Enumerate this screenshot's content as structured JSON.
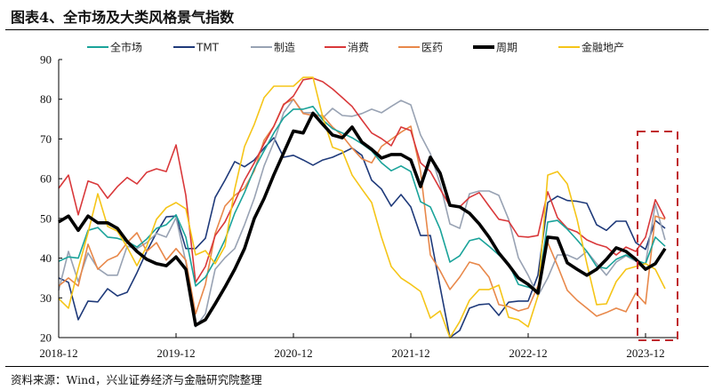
{
  "title": "图表4、全市场及大类风格景气指数",
  "source": "资料来源：Wind，兴业证券经济与金融研究院整理",
  "chart_data": {
    "type": "line",
    "title": "图表4、全市场及大类风格景气指数",
    "xlabel": "",
    "ylabel": "",
    "x_start": "2018-12",
    "x_end": "2024-02",
    "x_frequency": "monthly",
    "xticks": [
      "2018-12",
      "2019-12",
      "2020-12",
      "2021-12",
      "2022-12",
      "2023-12"
    ],
    "ylim": [
      20,
      90
    ],
    "yticks": [
      20,
      30,
      40,
      50,
      60,
      70,
      80,
      90
    ],
    "grid": false,
    "legend_position": "top",
    "highlight_box": {
      "from": "2023-11",
      "to": "2024-02",
      "color": "#C0282D",
      "style": "dashed"
    },
    "series": [
      {
        "name": "全市场",
        "color": "#1AA39A",
        "width": 1.6,
        "values": [
          39.2,
          40.3,
          40,
          47,
          47.7,
          45.3,
          45,
          44.2,
          42.8,
          44.8,
          47.5,
          48.4,
          50.9,
          45.3,
          33,
          35.2,
          39.5,
          44.6,
          51.3,
          56.5,
          62.5,
          67,
          71.5,
          75.3,
          77.5,
          77.5,
          78.2,
          74.8,
          72.6,
          71.5,
          70.3,
          68.8,
          67,
          64,
          62,
          63.2,
          61.8,
          54.2,
          52.9,
          47.3,
          39,
          40.6,
          44.4,
          45,
          43,
          40.8,
          38.6,
          33.4,
          32.7,
          31.9,
          49.1,
          49.5,
          47.3,
          44.6,
          41.7,
          37.9,
          37.4,
          39.7,
          40.8,
          39.5,
          38.6,
          45.3,
          43
        ]
      },
      {
        "name": "TMT",
        "color": "#1F3A7A",
        "width": 1.6,
        "values": [
          35,
          33.9,
          24.5,
          29.2,
          29,
          32.3,
          30.5,
          31.4,
          36.3,
          41.7,
          46.4,
          50.4,
          50.6,
          42.4,
          42.4,
          45,
          55.3,
          59.6,
          64.3,
          63,
          64.7,
          67.7,
          70.3,
          65.4,
          65.9,
          64.7,
          63.4,
          64.7,
          65.4,
          66.5,
          67.7,
          65.9,
          59.6,
          57.4,
          53.1,
          56,
          52.9,
          45.7,
          45.7,
          32.7,
          20,
          21.8,
          27.4,
          28.3,
          28.5,
          25.6,
          28.9,
          29.2,
          29.2,
          35.7,
          54,
          55.6,
          54.5,
          54.3,
          53.8,
          48.4,
          47,
          49.3,
          49.3,
          43.9,
          42.2,
          49.5,
          47.5
        ]
      },
      {
        "name": "制造",
        "color": "#98A2B3",
        "width": 1.6,
        "values": [
          31.9,
          41.7,
          34.1,
          41.3,
          37.4,
          35.7,
          35.7,
          43,
          42.4,
          43.9,
          46.2,
          45.3,
          50.2,
          39,
          22.7,
          26,
          37.2,
          40.1,
          42.4,
          48.4,
          55.1,
          63.2,
          69.2,
          76.6,
          80,
          76.6,
          76.6,
          75.3,
          77.7,
          75.9,
          75.7,
          76.4,
          77.5,
          76.6,
          78.2,
          79.7,
          78.6,
          71,
          66.3,
          58.7,
          48.6,
          47.5,
          56.2,
          56.9,
          56.9,
          55.8,
          49.8,
          40.1,
          35.7,
          30.5,
          35,
          40.8,
          40.8,
          39.7,
          41.7,
          38.6,
          35.7,
          39,
          40.6,
          39.2,
          38.6,
          53.6,
          44.6
        ]
      },
      {
        "name": "消费",
        "color": "#D9383A",
        "width": 1.6,
        "values": [
          57.6,
          60.9,
          50.9,
          59.4,
          58.5,
          55.1,
          58,
          60.3,
          58.7,
          61.6,
          62.5,
          61.8,
          68.5,
          55.8,
          33.9,
          37.9,
          45.7,
          49.1,
          54.2,
          59.6,
          64,
          68.8,
          73.2,
          78.6,
          80.8,
          84.9,
          85.3,
          84.4,
          82.6,
          80.4,
          78.2,
          74.8,
          71.5,
          70.1,
          68.3,
          73,
          72.1,
          64,
          61.8,
          57.4,
          53.1,
          52.9,
          55.3,
          56.5,
          53.1,
          49.8,
          49.3,
          45.5,
          45.3,
          45.7,
          56.7,
          50.2,
          47.5,
          46.6,
          44.6,
          43.5,
          42.8,
          40.8,
          42.8,
          41.7,
          45.3,
          54.7,
          50
        ]
      },
      {
        "name": "医药",
        "color": "#E8884A",
        "width": 1.6,
        "values": [
          33,
          35,
          33,
          43.5,
          37.2,
          39.5,
          40.6,
          43.9,
          46.4,
          41.7,
          43.9,
          39.5,
          42.4,
          39.5,
          26,
          33.4,
          46.2,
          53.1,
          55.8,
          57.6,
          62,
          69.7,
          73.2,
          78.8,
          80,
          76.4,
          75.9,
          75.9,
          73,
          70.8,
          67.7,
          65,
          64,
          68.1,
          69.9,
          71.7,
          73.2,
          61.8,
          40.8,
          36.8,
          32.1,
          35.2,
          39,
          38.3,
          35.2,
          28.3,
          27.8,
          26.7,
          27.4,
          33,
          43.9,
          38.1,
          31.9,
          29.4,
          27.4,
          25.4,
          26.3,
          27.4,
          26.5,
          31.2,
          28.5,
          50.6,
          49.8
        ]
      },
      {
        "name": "周期",
        "color": "#000000",
        "width": 3.6,
        "values": [
          49.1,
          50.6,
          47,
          50.6,
          48.9,
          48.9,
          47.5,
          44.2,
          41.7,
          39.7,
          38.6,
          38.1,
          40.3,
          37.2,
          23.1,
          24.5,
          28.5,
          32.7,
          37.2,
          42.4,
          50,
          55,
          61,
          66.5,
          72,
          71.5,
          76.5,
          73.7,
          71,
          70.3,
          73,
          69.2,
          67.4,
          65.2,
          66.1,
          66.1,
          64.7,
          58,
          65.4,
          61.4,
          53.3,
          52.9,
          51.3,
          48.6,
          45.3,
          41.3,
          38.3,
          35,
          33.4,
          31.2,
          45.3,
          45,
          38.8,
          37.2,
          35.7,
          37.2,
          39.7,
          42.6,
          41.7,
          39.7,
          37.2,
          38.6,
          42.4
        ]
      },
      {
        "name": "金融地产",
        "color": "#F5C518",
        "width": 1.6,
        "values": [
          29.8,
          27.4,
          37.4,
          46.4,
          56.2,
          48,
          46.8,
          42.8,
          38.1,
          43,
          49.8,
          52.7,
          54,
          52.4,
          40.8,
          41.9,
          38.6,
          43,
          57.4,
          68.1,
          73.7,
          80.4,
          83.3,
          83.3,
          83.3,
          85.5,
          85.5,
          75.5,
          67.9,
          67,
          60.9,
          57.4,
          54,
          45.3,
          37.9,
          35,
          33.4,
          31.6,
          24.9,
          26.7,
          20,
          24,
          29.4,
          32.1,
          32.1,
          33.2,
          25.1,
          24.5,
          22.7,
          30.5,
          60.9,
          61.8,
          58.7,
          49.8,
          38.6,
          28.3,
          28.5,
          34.1,
          37.2,
          37.9,
          38.6,
          37.2,
          32.3
        ]
      }
    ]
  }
}
